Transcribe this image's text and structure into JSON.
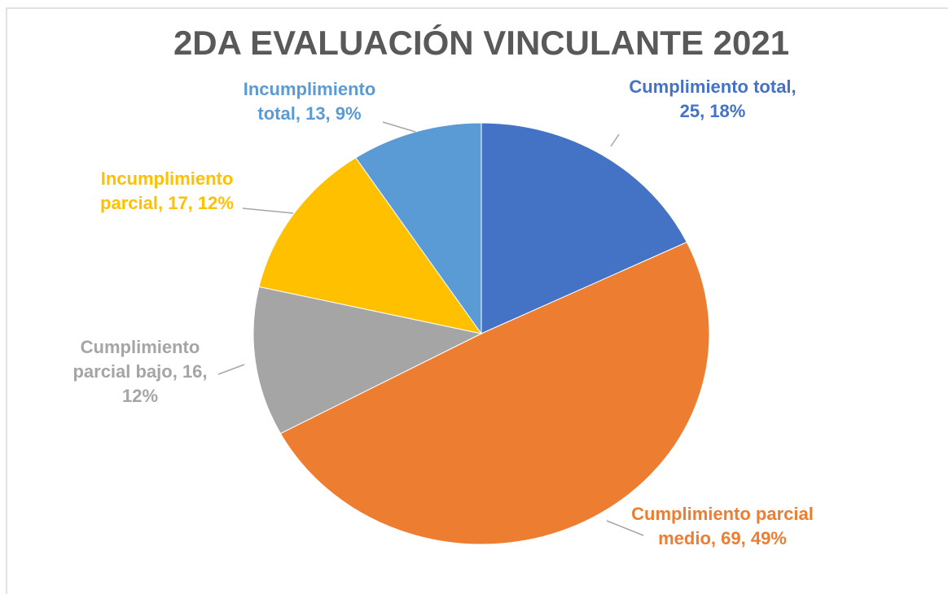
{
  "chart_data": {
    "type": "pie",
    "title": "2DA EVALUACIÓN VINCULANTE 2021",
    "values": [
      25,
      69,
      16,
      17,
      13
    ],
    "value_labels": [
      "Cumplimiento total, 25, 18%",
      "Cumplimiento parcial medio, 69, 49%",
      "Cumplimiento parcial bajo, 16, 12%",
      "Incumplimiento parcial, 17, 12%",
      "Incumplimiento total, 13, 9%"
    ],
    "colors": [
      "#4472c4",
      "#ed7d31",
      "#a5a5a5",
      "#ffc000",
      "#5b9bd5"
    ]
  }
}
